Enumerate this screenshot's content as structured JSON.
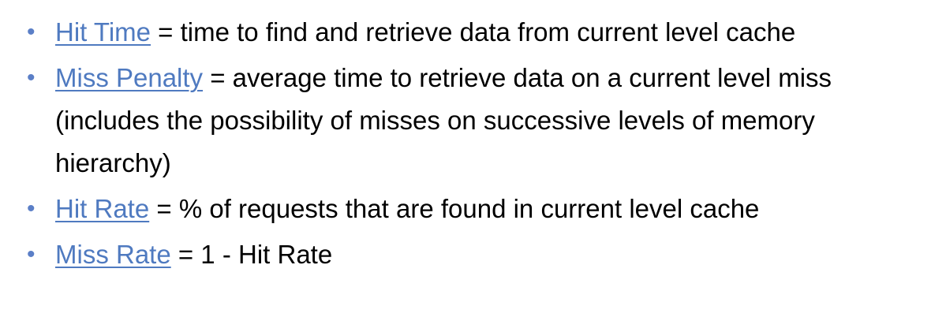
{
  "bullet_glyph": "•",
  "accent_color": "#4f7ac0",
  "items": [
    {
      "term": "Hit Time",
      "definition": " = time to find and retrieve data from current level cache"
    },
    {
      "term": "Miss Penalty",
      "definition": " = average time to retrieve data on a current level miss (includes the possibility of misses on successive levels of memory hierarchy)"
    },
    {
      "term": "Hit Rate",
      "definition": " = % of requests that are found in current level cache"
    },
    {
      "term": "Miss Rate",
      "definition": " = 1 - Hit Rate"
    }
  ]
}
